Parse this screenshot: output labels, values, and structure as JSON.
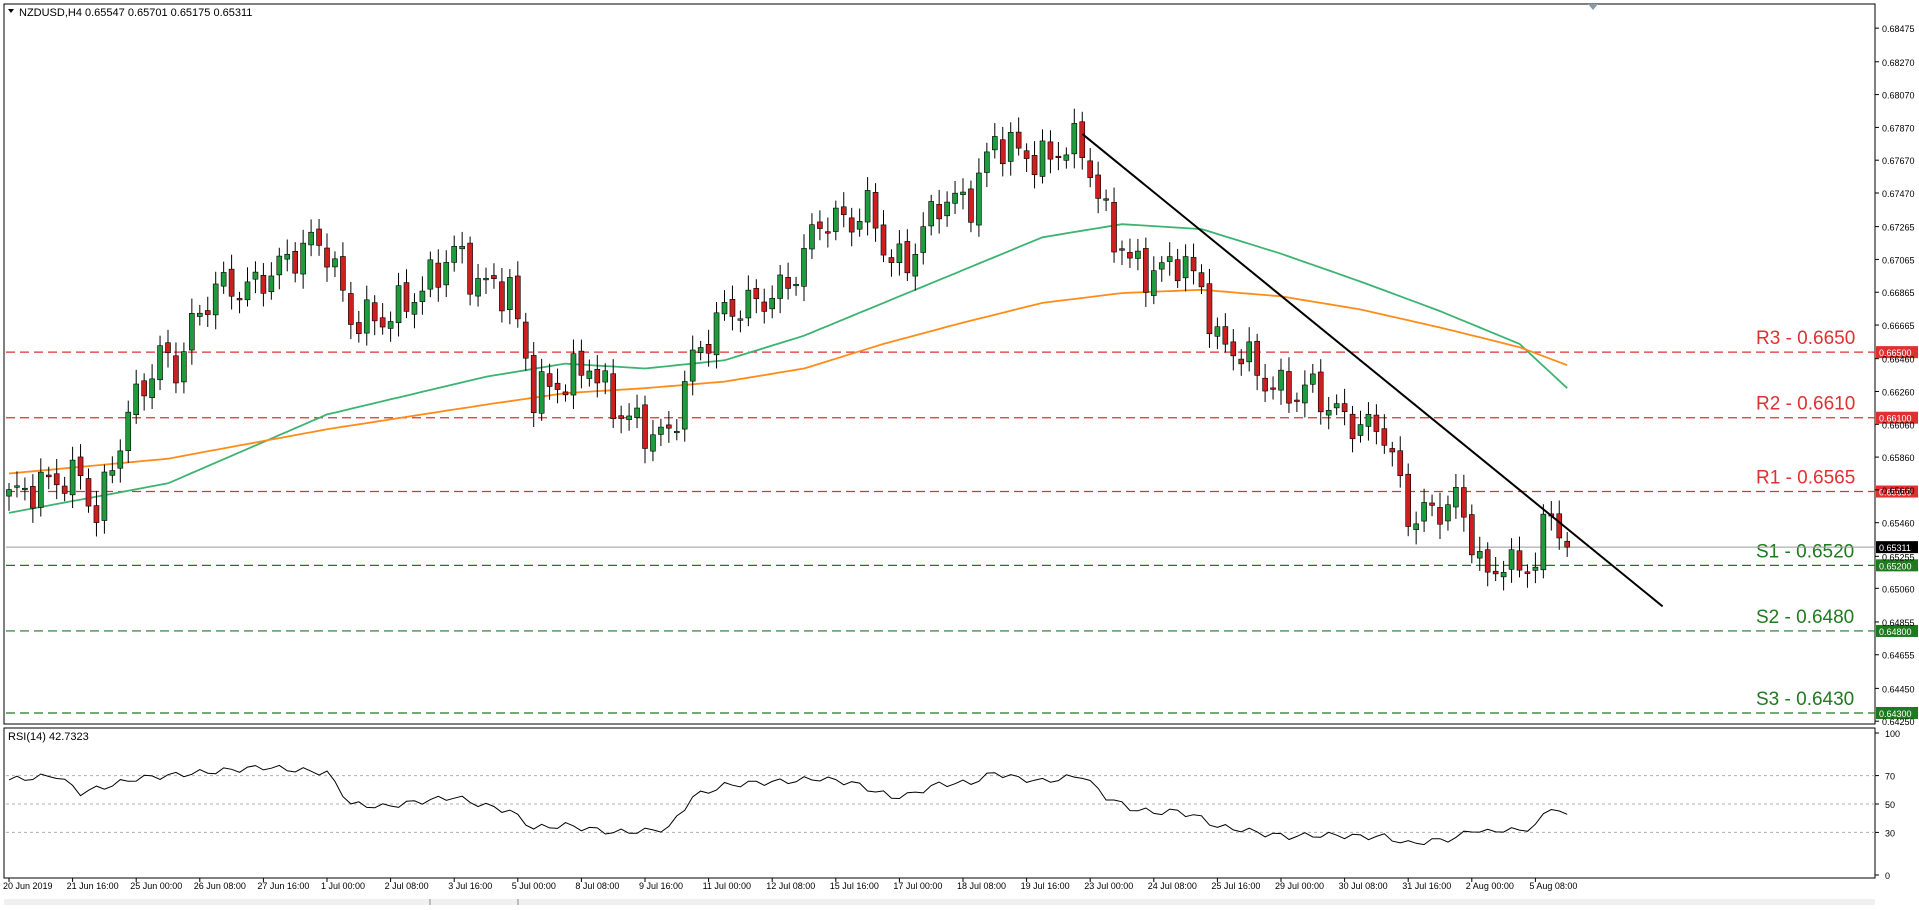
{
  "chart_data": {
    "type": "candlestick",
    "symbol_header": "NZDUSD,H4  0.65547 0.65701 0.65175 0.65311",
    "price_axis": {
      "min": 0.64245,
      "max": 0.6861,
      "ticks": [
        "0.68475",
        "0.68270",
        "0.68070",
        "0.67870",
        "0.67670",
        "0.67470",
        "0.67265",
        "0.67065",
        "0.66865",
        "0.66665",
        "0.66460",
        "0.66260",
        "0.66060",
        "0.65860",
        "0.65660",
        "0.65460",
        "0.65255",
        "0.65060",
        "0.64855",
        "0.64655",
        "0.64450",
        "0.64250"
      ],
      "tick_values": [
        0.68475,
        0.6827,
        0.6807,
        0.6787,
        0.6767,
        0.6747,
        0.67265,
        0.67065,
        0.66865,
        0.66665,
        0.6646,
        0.6626,
        0.6606,
        0.6586,
        0.6566,
        0.6546,
        0.65255,
        0.6506,
        0.64855,
        0.64655,
        0.6445,
        0.6425
      ]
    },
    "time_axis": {
      "labels": [
        "20 Jun 2019",
        "21 Jun 16:00",
        "25 Jun 00:00",
        "26 Jun 08:00",
        "27 Jun 16:00",
        "1 Jul 00:00",
        "2 Jul 08:00",
        "3 Jul 16:00",
        "5 Jul 00:00",
        "8 Jul 08:00",
        "9 Jul 16:00",
        "11 Jul 00:00",
        "12 Jul 08:00",
        "15 Jul 16:00",
        "17 Jul 00:00",
        "18 Jul 08:00",
        "19 Jul 16:00",
        "23 Jul 00:00",
        "24 Jul 08:00",
        "25 Jul 16:00",
        "29 Jul 00:00",
        "30 Jul 08:00",
        "31 Jul 16:00",
        "2 Aug 00:00",
        "5 Aug 08:00"
      ],
      "label_bar_index": [
        0,
        8,
        16,
        24,
        32,
        40,
        48,
        56,
        64,
        72,
        80,
        88,
        96,
        104,
        112,
        120,
        128,
        136,
        144,
        152,
        160,
        168,
        176,
        184,
        192
      ],
      "bar_count": 197
    },
    "anchors": [
      {
        "i": 0,
        "c": 0.6562
      },
      {
        "i": 6,
        "c": 0.6572
      },
      {
        "i": 9,
        "c": 0.6574
      },
      {
        "i": 11,
        "c": 0.655
      },
      {
        "i": 15,
        "c": 0.6612
      },
      {
        "i": 19,
        "c": 0.6648
      },
      {
        "i": 21,
        "c": 0.664
      },
      {
        "i": 23,
        "c": 0.6665
      },
      {
        "i": 26,
        "c": 0.669
      },
      {
        "i": 30,
        "c": 0.6688
      },
      {
        "i": 34,
        "c": 0.6702
      },
      {
        "i": 38,
        "c": 0.6717
      },
      {
        "i": 40,
        "c": 0.6713
      },
      {
        "i": 43,
        "c": 0.667
      },
      {
        "i": 47,
        "c": 0.667
      },
      {
        "i": 52,
        "c": 0.6688
      },
      {
        "i": 56,
        "c": 0.6712
      },
      {
        "i": 59,
        "c": 0.6692
      },
      {
        "i": 63,
        "c": 0.6688
      },
      {
        "i": 66,
        "c": 0.6625
      },
      {
        "i": 70,
        "c": 0.6632
      },
      {
        "i": 73,
        "c": 0.6643
      },
      {
        "i": 76,
        "c": 0.6617
      },
      {
        "i": 80,
        "c": 0.6602
      },
      {
        "i": 83,
        "c": 0.6598
      },
      {
        "i": 86,
        "c": 0.6645
      },
      {
        "i": 90,
        "c": 0.6675
      },
      {
        "i": 94,
        "c": 0.668
      },
      {
        "i": 98,
        "c": 0.669
      },
      {
        "i": 102,
        "c": 0.673
      },
      {
        "i": 106,
        "c": 0.673
      },
      {
        "i": 108,
        "c": 0.6738
      },
      {
        "i": 111,
        "c": 0.6705
      },
      {
        "i": 113,
        "c": 0.6705
      },
      {
        "i": 117,
        "c": 0.6742
      },
      {
        "i": 121,
        "c": 0.6742
      },
      {
        "i": 124,
        "c": 0.678
      },
      {
        "i": 127,
        "c": 0.6772
      },
      {
        "i": 130,
        "c": 0.6766
      },
      {
        "i": 133,
        "c": 0.6776
      },
      {
        "i": 135,
        "c": 0.6775
      },
      {
        "i": 138,
        "c": 0.673
      },
      {
        "i": 141,
        "c": 0.6705
      },
      {
        "i": 144,
        "c": 0.6697
      },
      {
        "i": 147,
        "c": 0.6707
      },
      {
        "i": 150,
        "c": 0.669
      },
      {
        "i": 152,
        "c": 0.6655
      },
      {
        "i": 155,
        "c": 0.665
      },
      {
        "i": 158,
        "c": 0.6632
      },
      {
        "i": 161,
        "c": 0.6625
      },
      {
        "i": 164,
        "c": 0.6628
      },
      {
        "i": 167,
        "c": 0.6612
      },
      {
        "i": 170,
        "c": 0.6605
      },
      {
        "i": 173,
        "c": 0.6602
      },
      {
        "i": 176,
        "c": 0.655
      },
      {
        "i": 179,
        "c": 0.6552
      },
      {
        "i": 182,
        "c": 0.656
      },
      {
        "i": 184,
        "c": 0.6537
      },
      {
        "i": 186,
        "c": 0.651
      },
      {
        "i": 188,
        "c": 0.6525
      },
      {
        "i": 190,
        "c": 0.6515
      },
      {
        "i": 192,
        "c": 0.6525
      },
      {
        "i": 194,
        "c": 0.6553
      },
      {
        "i": 196,
        "c": 0.6531
      }
    ],
    "ma_fast": {
      "color": "#3cb371",
      "points": [
        [
          0,
          0.6552
        ],
        [
          20,
          0.657
        ],
        [
          40,
          0.6612
        ],
        [
          60,
          0.6635
        ],
        [
          70,
          0.6643
        ],
        [
          80,
          0.664
        ],
        [
          90,
          0.6645
        ],
        [
          100,
          0.666
        ],
        [
          110,
          0.668
        ],
        [
          120,
          0.67
        ],
        [
          130,
          0.672
        ],
        [
          140,
          0.6728
        ],
        [
          150,
          0.6725
        ],
        [
          160,
          0.671
        ],
        [
          170,
          0.6693
        ],
        [
          180,
          0.6675
        ],
        [
          190,
          0.6655
        ],
        [
          196,
          0.6628
        ]
      ]
    },
    "ma_slow": {
      "color": "#ff8c1a",
      "points": [
        [
          0,
          0.6576
        ],
        [
          20,
          0.6585
        ],
        [
          40,
          0.6603
        ],
        [
          60,
          0.6618
        ],
        [
          70,
          0.6625
        ],
        [
          80,
          0.6628
        ],
        [
          90,
          0.6632
        ],
        [
          100,
          0.664
        ],
        [
          110,
          0.6655
        ],
        [
          120,
          0.6668
        ],
        [
          130,
          0.668
        ],
        [
          140,
          0.6686
        ],
        [
          150,
          0.6688
        ],
        [
          160,
          0.6684
        ],
        [
          170,
          0.6676
        ],
        [
          180,
          0.6665
        ],
        [
          190,
          0.6653
        ],
        [
          196,
          0.6642
        ]
      ]
    },
    "trendline": {
      "color": "#000000",
      "from": [
        135,
        0.6783
      ],
      "to": [
        208,
        0.6495
      ]
    },
    "levels": [
      {
        "label": "R3 - 0.6650",
        "tag": "0.66500",
        "value": 0.665,
        "color": "#e03030"
      },
      {
        "label": "R2 - 0.6610",
        "tag": "0.66100",
        "value": 0.661,
        "color": "#e03030"
      },
      {
        "label": "R1 - 0.6565",
        "tag": "0.65650",
        "value": 0.6565,
        "color": "#e03030"
      },
      {
        "label": "S1 - 0.6520",
        "tag": "0.65200",
        "value": 0.652,
        "color": "#1e7a1e"
      },
      {
        "label": "S2 - 0.6480",
        "tag": "0.64800",
        "value": 0.648,
        "color": "#1e7a1e"
      },
      {
        "label": "S3 - 0.6430",
        "tag": "0.64300",
        "value": 0.643,
        "color": "#1e7a1e"
      }
    ],
    "current_price": {
      "value": 0.65311,
      "tag": "0.65311"
    },
    "bull_color": "#1f9a3c",
    "bear_color": "#cc2020",
    "rsi": {
      "header": "RSI(14) 42.7323",
      "value": 42.7323,
      "min": 0,
      "max": 100,
      "tick_labels": [
        "100",
        "70",
        "50",
        "30",
        "0"
      ],
      "tick_values": [
        100,
        70,
        50,
        30,
        0
      ],
      "guide_levels": [
        70,
        50,
        30
      ],
      "anchors": [
        [
          0,
          67
        ],
        [
          6,
          70
        ],
        [
          9,
          58
        ],
        [
          12,
          62
        ],
        [
          16,
          68
        ],
        [
          24,
          72
        ],
        [
          32,
          76
        ],
        [
          40,
          72
        ],
        [
          43,
          50
        ],
        [
          47,
          48
        ],
        [
          52,
          52
        ],
        [
          56,
          55
        ],
        [
          59,
          50
        ],
        [
          63,
          45
        ],
        [
          66,
          33
        ],
        [
          70,
          35
        ],
        [
          76,
          30
        ],
        [
          80,
          31
        ],
        [
          83,
          33
        ],
        [
          86,
          55
        ],
        [
          90,
          63
        ],
        [
          94,
          65
        ],
        [
          98,
          66
        ],
        [
          102,
          68
        ],
        [
          106,
          65
        ],
        [
          111,
          55
        ],
        [
          113,
          56
        ],
        [
          117,
          64
        ],
        [
          121,
          65
        ],
        [
          124,
          72
        ],
        [
          127,
          68
        ],
        [
          130,
          66
        ],
        [
          135,
          70
        ],
        [
          138,
          55
        ],
        [
          141,
          47
        ],
        [
          144,
          44
        ],
        [
          147,
          45
        ],
        [
          150,
          40
        ],
        [
          152,
          34
        ],
        [
          155,
          32
        ],
        [
          158,
          29
        ],
        [
          161,
          27
        ],
        [
          164,
          28
        ],
        [
          167,
          28
        ],
        [
          170,
          27
        ],
        [
          173,
          27
        ],
        [
          176,
          22
        ],
        [
          179,
          24
        ],
        [
          182,
          26
        ],
        [
          184,
          32
        ],
        [
          186,
          30
        ],
        [
          188,
          32
        ],
        [
          190,
          31
        ],
        [
          192,
          35
        ],
        [
          194,
          48
        ],
        [
          196,
          43
        ]
      ]
    }
  }
}
